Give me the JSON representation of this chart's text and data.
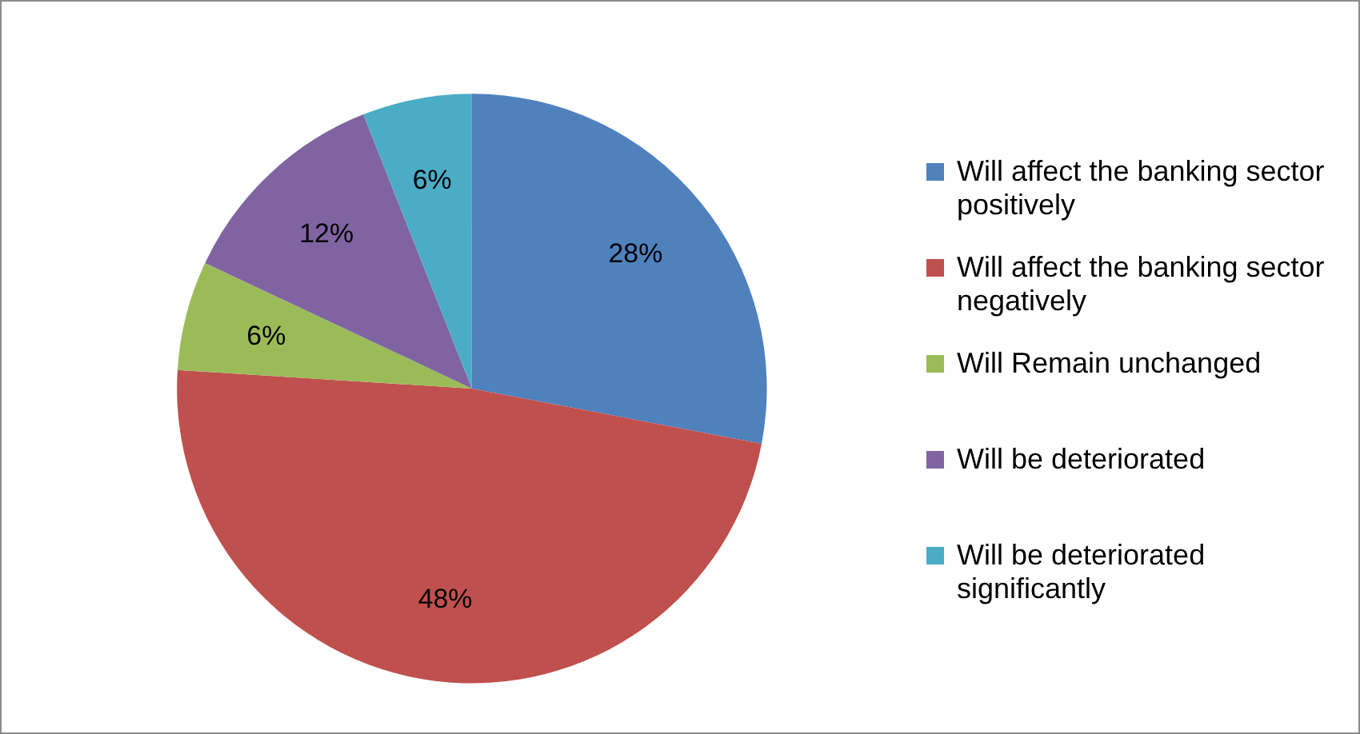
{
  "chart_data": {
    "type": "pie",
    "categories": [
      "Will affect the banking sector  positively",
      "Will affect the banking sector  negatively",
      "Will Remain unchanged",
      "Will be deteriorated",
      "Will be deteriorated significantly"
    ],
    "values": [
      28,
      48,
      6,
      12,
      6
    ],
    "colors": [
      "#4f81bd",
      "#c0504d",
      "#9bbb59",
      "#8064a2",
      "#4bacc6"
    ],
    "value_labels": [
      "28%",
      "48%",
      "6%",
      "12%",
      "6%"
    ],
    "legend": "right"
  }
}
